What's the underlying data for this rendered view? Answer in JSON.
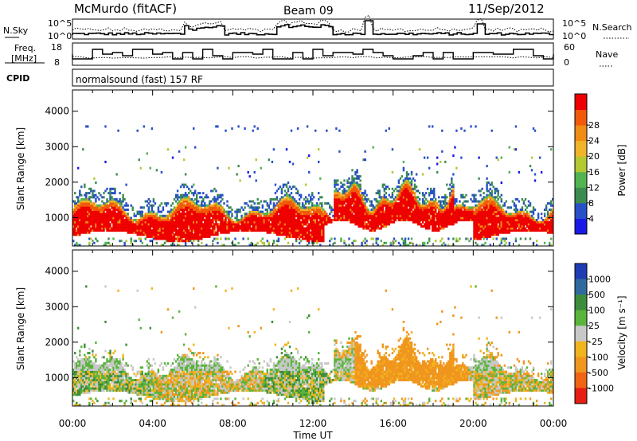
{
  "header": {
    "radar": "McMurdo (fitACF)",
    "beam": "Beam 09",
    "date": "11/Sep/2012"
  },
  "top_panels": {
    "nsky_label": "N.Sky",
    "nsearch_label": "N.Search",
    "nsky_ticks": [
      "10^5",
      "10^0"
    ],
    "nsearch_ticks": [
      "10^5",
      "10^0"
    ],
    "freq_label_1": "Freq.",
    "freq_label_2": "[MHz]",
    "freq_ticks": [
      "18",
      "8"
    ],
    "nave_label": "Nave",
    "nave_ticks": [
      "60",
      "0"
    ],
    "cpid_label": "CPID",
    "cpid_text": "normalsound (fast) 157 RF"
  },
  "chart_data": [
    {
      "type": "heatmap",
      "name": "power",
      "ylabel": "Slant Range [km]",
      "yticks": [
        1000,
        2000,
        3000,
        4000
      ],
      "ylim": [
        200,
        4600
      ],
      "xticks": [
        "00:00",
        "04:00",
        "08:00",
        "12:00",
        "16:00",
        "20:00",
        "00:00"
      ],
      "xlim": [
        0,
        24
      ],
      "colorbar": {
        "label": "Power [dB]",
        "ticks": [
          4,
          8,
          12,
          16,
          20,
          24,
          28
        ],
        "colors": [
          "#1a1ae6",
          "#2850c8",
          "#3c8c50",
          "#52b450",
          "#b4c832",
          "#f0b428",
          "#f08c14",
          "#f05a0a",
          "#ee0000"
        ]
      }
    },
    {
      "type": "heatmap",
      "name": "velocity",
      "ylabel": "Slant Range [km]",
      "yticks": [
        1000,
        2000,
        3000,
        4000
      ],
      "ylim": [
        200,
        4600
      ],
      "xticks": [
        "00:00",
        "04:00",
        "08:00",
        "12:00",
        "16:00",
        "20:00",
        "00:00"
      ],
      "xlim": [
        0,
        24
      ],
      "xlabel": "Time UT",
      "colorbar": {
        "label": "Velocity [m s⁻¹]",
        "ticks": [
          1000,
          500,
          100,
          25,
          -25,
          -100,
          -500,
          -1000
        ],
        "colors": [
          "#1e3cb4",
          "#2e6aa0",
          "#3c8c3c",
          "#5ab43c",
          "#c8c8c8",
          "#f0b41e",
          "#f0961e",
          "#f06414",
          "#e61e14"
        ]
      }
    }
  ]
}
